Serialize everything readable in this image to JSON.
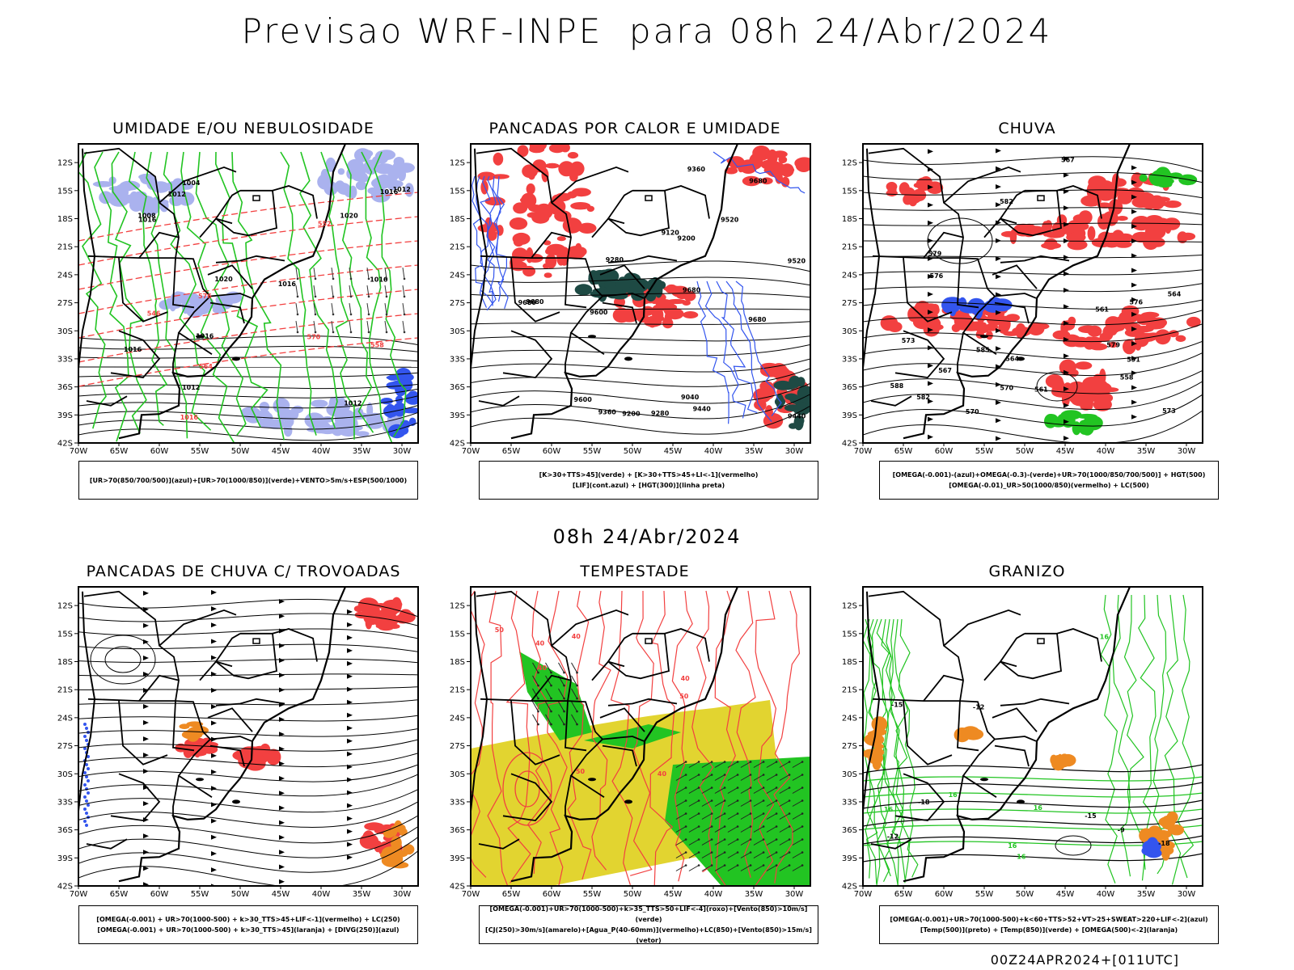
{
  "title": "Previsao WRF-INPE  para 08h 24/Abr/2024",
  "subtitle_time": "08h 24/Abr/2024",
  "footer": "00Z24APR2024+[011UTC]",
  "lat_labels": [
    "12S",
    "15S",
    "18S",
    "21S",
    "24S",
    "27S",
    "30S",
    "33S",
    "36S",
    "39S",
    "42S"
  ],
  "lon_labels": [
    "70W",
    "65W",
    "60W",
    "55W",
    "50W",
    "45W",
    "40W",
    "35W",
    "30W"
  ],
  "panels": [
    {
      "title": "UMIDADE E/OU NEBULOSIDADE",
      "legend": [
        "[UR>70(850/700/500)](azul)+[UR>70(1000/850)](verde)+VENTO>5m/s+ESP(500/1000)"
      ],
      "contour_labels": [
        "1012",
        "1016",
        "1020",
        "1012",
        "1016",
        "1016",
        "1016",
        "1012",
        "1016",
        "1016",
        "1020",
        "1004",
        "1008",
        "1012",
        "1016",
        "570",
        "576",
        "564",
        "558",
        "552",
        "546"
      ]
    },
    {
      "title": "PANCADAS POR CALOR E UMIDADE",
      "legend": [
        "[K>30+TTS>45](verde) + [K>30+TTS>45+LI<-1](vermelho)",
        "[LIF](cont.azul) + [HGT(300)](linha preta)"
      ],
      "contour_labels": [
        "9680",
        "9680",
        "9680",
        "9680",
        "9680",
        "9520",
        "9600",
        "9600",
        "9520",
        "9440",
        "9360",
        "9280",
        "9200",
        "9120",
        "9040",
        "9440",
        "9360",
        "9280",
        "9200"
      ]
    },
    {
      "title": "CHUVA",
      "legend": [
        "[OMEGA(-0.001)-(azul)+OMEGA(-0.3)-(verde)+UR>70(1000/850/700/500)] + HGT(500)",
        "[OMEGA(-0.01)_UR>50(1000/850)(vermelho) + LC(500)"
      ],
      "contour_labels": [
        "588",
        "591",
        "585",
        "582",
        "579",
        "576",
        "573",
        "570",
        "567",
        "564",
        "561",
        "558",
        "579",
        "576",
        "573",
        "570",
        "567",
        "564",
        "561",
        "582"
      ]
    },
    {
      "title": "PANCADAS DE CHUVA C/ TROVOADAS",
      "legend": [
        "[OMEGA(-0.001) + UR>70(1000-500) + k>30_TTS>45+LIF<-1](vermelho) + LC(250)",
        "[OMEGA(-0.001) + UR>70(1000-500) + k>30_TTS>45](laranja) + [DIVG(250)](azul)"
      ],
      "contour_labels": []
    },
    {
      "title": "TEMPESTADE",
      "legend": [
        "[OMEGA(-0.001)+UR>70(1000-500)+k>35_TTS>50+LIF<-4](roxo)+[Vento(850)>10m/s](verde)",
        "[CJ(250)>30m/s](amarelo)+[Agua_P(40-60mm)](vermelho)+LC(850)+[Vento(850)>15m/s](vetor)"
      ],
      "contour_labels": [
        "40",
        "50",
        "40",
        "40",
        "50",
        "40",
        "50",
        "40"
      ]
    },
    {
      "title": "GRANIZO",
      "legend": [
        "[OMEGA(-0.001)+UR>70(1000-500)+k<60+TTS>52+VT>25+SWEAT>220+LIF<-2](azul)",
        "[Temp(500)](preto) + [Temp(850)](verde) + [OMEGA(500)<-2](laranja)"
      ],
      "contour_labels": [
        "16",
        "16",
        "16",
        "-12",
        "-15",
        "-18",
        "-9",
        "-12",
        "-15",
        "-18",
        "16",
        "16",
        "16"
      ]
    }
  ],
  "colors": {
    "red": "#f24040",
    "green": "#22c422",
    "blue": "#3355ee",
    "lavender": "#aab2ee",
    "darkteal": "#1e4a44",
    "yellow": "#e2d430",
    "orange": "#ee8a22",
    "black": "#000000"
  }
}
